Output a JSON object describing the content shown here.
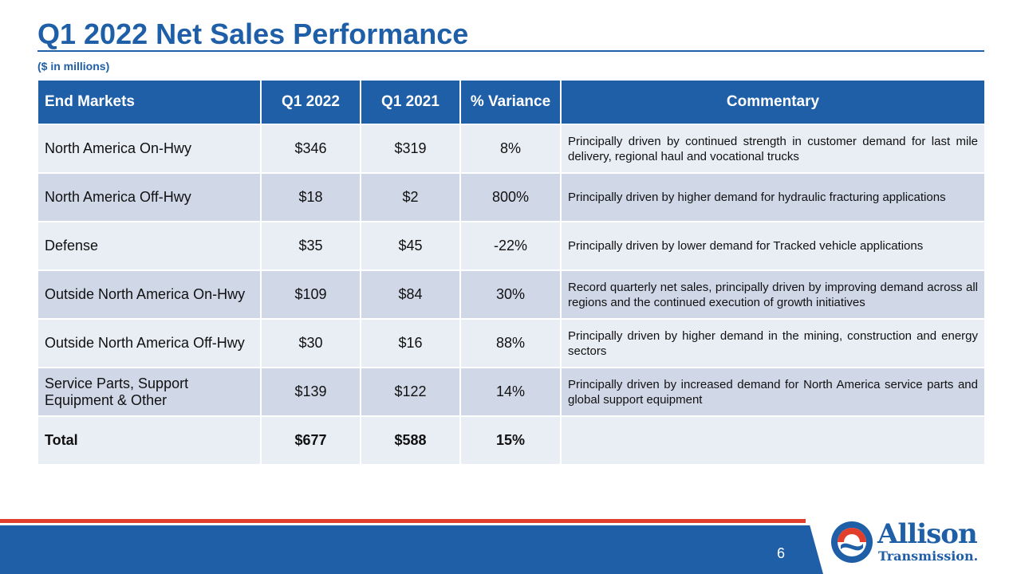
{
  "slide": {
    "title": "Q1 2022 Net Sales Performance",
    "subtitle": "($ in millions)",
    "page_number": "6"
  },
  "table": {
    "headers": [
      "End Markets",
      "Q1 2022",
      "Q1 2021",
      "% Variance",
      "Commentary"
    ],
    "rows": [
      {
        "market": "North America On-Hwy",
        "q1_2022": "$346",
        "q1_2021": "$319",
        "variance": "8%",
        "commentary": "Principally driven by continued strength in customer demand for last mile delivery, regional haul and vocational trucks"
      },
      {
        "market": "North America Off-Hwy",
        "q1_2022": "$18",
        "q1_2021": "$2",
        "variance": "800%",
        "commentary": "Principally driven by higher demand for hydraulic fracturing applications"
      },
      {
        "market": "Defense",
        "q1_2022": "$35",
        "q1_2021": "$45",
        "variance": "-22%",
        "commentary": "Principally driven by lower demand for Tracked vehicle applications"
      },
      {
        "market": "Outside North America On-Hwy",
        "q1_2022": "$109",
        "q1_2021": "$84",
        "variance": "30%",
        "commentary": "Record quarterly net sales, principally driven by improving demand across all regions and the continued execution of growth initiatives"
      },
      {
        "market": "Outside North America Off-Hwy",
        "q1_2022": "$30",
        "q1_2021": "$16",
        "variance": "88%",
        "commentary": "Principally driven by higher demand in the mining, construction and energy sectors"
      },
      {
        "market": "Service Parts, Support Equipment & Other",
        "q1_2022": "$139",
        "q1_2021": "$122",
        "variance": "14%",
        "commentary": "Principally driven by increased demand for North America service parts and global support equipment"
      }
    ],
    "total": {
      "market": "Total",
      "q1_2022": "$677",
      "q1_2021": "$588",
      "variance": "15%",
      "commentary": ""
    }
  },
  "logo": {
    "name_line1": "Allison",
    "name_line2": "Transmission.",
    "icon": "allison-logo-mark"
  },
  "colors": {
    "brand_blue": "#1f5fa8",
    "row_light": "#e9edf4",
    "row_dark": "#d0d8e8",
    "accent_red": "#e23e2c"
  }
}
